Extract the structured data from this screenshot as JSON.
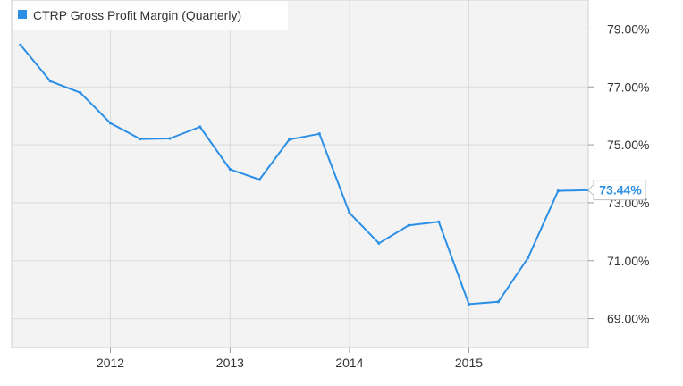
{
  "chart_data": {
    "type": "line",
    "title": "",
    "legend": {
      "label": "CTRP Gross Profit Margin (Quarterly)",
      "placement": "top-left"
    },
    "series": [
      {
        "name": "CTRP Gross Profit Margin (Quarterly)",
        "color": "#2b8fe6",
        "points": [
          {
            "x": "2011-03-31",
            "y": 78.45
          },
          {
            "x": "2011-06-30",
            "y": 77.2
          },
          {
            "x": "2011-09-30",
            "y": 76.8
          },
          {
            "x": "2011-12-31",
            "y": 75.75
          },
          {
            "x": "2012-03-31",
            "y": 75.2
          },
          {
            "x": "2012-06-30",
            "y": 75.22
          },
          {
            "x": "2012-09-30",
            "y": 75.62
          },
          {
            "x": "2012-12-31",
            "y": 74.15
          },
          {
            "x": "2013-03-31",
            "y": 73.8
          },
          {
            "x": "2013-06-30",
            "y": 75.18
          },
          {
            "x": "2013-09-30",
            "y": 75.38
          },
          {
            "x": "2013-12-31",
            "y": 72.65
          },
          {
            "x": "2014-03-31",
            "y": 71.6
          },
          {
            "x": "2014-06-30",
            "y": 72.22
          },
          {
            "x": "2014-09-30",
            "y": 72.34
          },
          {
            "x": "2014-12-31",
            "y": 69.5
          },
          {
            "x": "2015-03-31",
            "y": 69.58
          },
          {
            "x": "2015-06-30",
            "y": 71.1
          },
          {
            "x": "2015-09-30",
            "y": 73.41
          },
          {
            "x": "2015-12-31",
            "y": 73.44
          }
        ]
      }
    ],
    "x_axis": {
      "type": "date",
      "range": [
        "2011-03-04",
        "2015-12-31"
      ],
      "ticks": [
        {
          "value": "2011-12-31",
          "label": "2012"
        },
        {
          "value": "2012-12-31",
          "label": "2013"
        },
        {
          "value": "2013-12-31",
          "label": "2014"
        },
        {
          "value": "2014-12-31",
          "label": "2015"
        }
      ]
    },
    "y_axis": {
      "position": "right",
      "range": [
        68.0,
        80.0
      ],
      "ticks": [
        {
          "value": 69,
          "label": "69.00%"
        },
        {
          "value": 71,
          "label": "71.00%"
        },
        {
          "value": 73,
          "label": "73.00%"
        },
        {
          "value": 75,
          "label": "75.00%"
        },
        {
          "value": 77,
          "label": "77.00%"
        },
        {
          "value": 79,
          "label": "79.00%"
        }
      ]
    },
    "last_value_callout": {
      "value": 73.44,
      "label": "73.44%"
    },
    "grid": true,
    "colors": {
      "line": "#2b8fe6",
      "plot_background": "#f3f3f3",
      "grid": "#dcdcdc",
      "callout": "#2b8fe6"
    }
  }
}
